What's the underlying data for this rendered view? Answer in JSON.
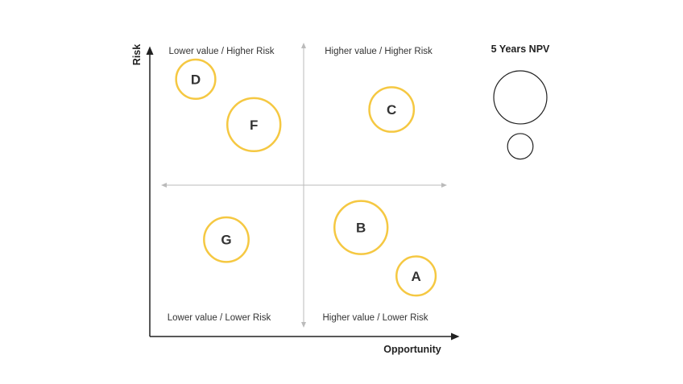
{
  "chart_data": {
    "type": "bubble",
    "xlabel": "Opportunity",
    "ylabel": "Risk",
    "xlim": [
      0,
      10
    ],
    "ylim": [
      0,
      10
    ],
    "quadrants": {
      "top_left": "Lower value / Higher Risk",
      "top_right": "Higher value / Higher Risk",
      "bottom_left": "Lower value / Lower Risk",
      "bottom_right": "Higher value / Lower Risk"
    },
    "bubbles": [
      {
        "label": "D",
        "x": 1.5,
        "y": 8.5,
        "size": 2
      },
      {
        "label": "F",
        "x": 3.4,
        "y": 7.0,
        "size": 5
      },
      {
        "label": "C",
        "x": 7.9,
        "y": 7.5,
        "size": 3
      },
      {
        "label": "G",
        "x": 2.5,
        "y": 3.2,
        "size": 3
      },
      {
        "label": "B",
        "x": 6.9,
        "y": 3.6,
        "size": 5
      },
      {
        "label": "A",
        "x": 8.7,
        "y": 2.0,
        "size": 2
      }
    ],
    "legend": {
      "title": "5 Years NPV",
      "sizes": [
        5,
        2
      ],
      "placement": "top-right"
    },
    "bubble_color": "#f5c842",
    "cross_color": "#bbbbbb",
    "axis_color": "#222222"
  }
}
